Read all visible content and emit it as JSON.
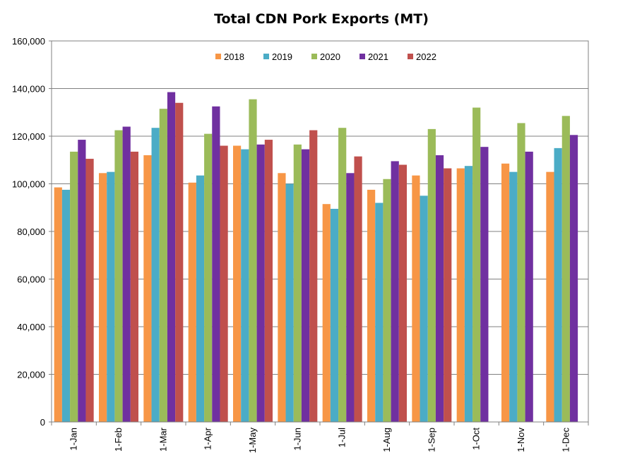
{
  "chart_data": {
    "type": "bar",
    "title": "Total CDN Pork Exports (MT)",
    "xlabel": "",
    "ylabel": "",
    "ylim": [
      0,
      160000
    ],
    "y_ticks": [
      "0",
      "20,000",
      "40,000",
      "60,000",
      "80,000",
      "100,000",
      "120,000",
      "140,000",
      "160,000"
    ],
    "y_tick_values": [
      0,
      20000,
      40000,
      60000,
      80000,
      100000,
      120000,
      140000,
      160000
    ],
    "grid": true,
    "legend_position": "top-center",
    "categories": [
      "1-Jan",
      "1-Feb",
      "1-Mar",
      "1-Apr",
      "1-May",
      "1-Jun",
      "1-Jul",
      "1-Aug",
      "1-Sep",
      "1-Oct",
      "1-Nov",
      "1-Dec"
    ],
    "series": [
      {
        "name": "2018",
        "color": "#F79646",
        "values": [
          98500,
          104500,
          112000,
          100500,
          116000,
          104500,
          91500,
          97500,
          103500,
          106500,
          108500,
          105000
        ]
      },
      {
        "name": "2019",
        "color": "#4BACC6",
        "values": [
          97500,
          105000,
          123500,
          103500,
          114500,
          100000,
          89500,
          92000,
          95000,
          107500,
          105000,
          115000
        ]
      },
      {
        "name": "2020",
        "color": "#9BBB59",
        "values": [
          113500,
          122500,
          131500,
          121000,
          135500,
          116500,
          123500,
          102000,
          123000,
          132000,
          125500,
          128500
        ]
      },
      {
        "name": "2021",
        "color": "#7030A0",
        "values": [
          118500,
          124000,
          138500,
          132500,
          116500,
          114500,
          104500,
          109500,
          112000,
          115500,
          113500,
          120500
        ]
      },
      {
        "name": "2022",
        "color": "#C0504D",
        "values": [
          110500,
          113500,
          134000,
          116000,
          118500,
          122500,
          111500,
          108000,
          106500,
          null,
          null,
          null
        ]
      }
    ]
  }
}
